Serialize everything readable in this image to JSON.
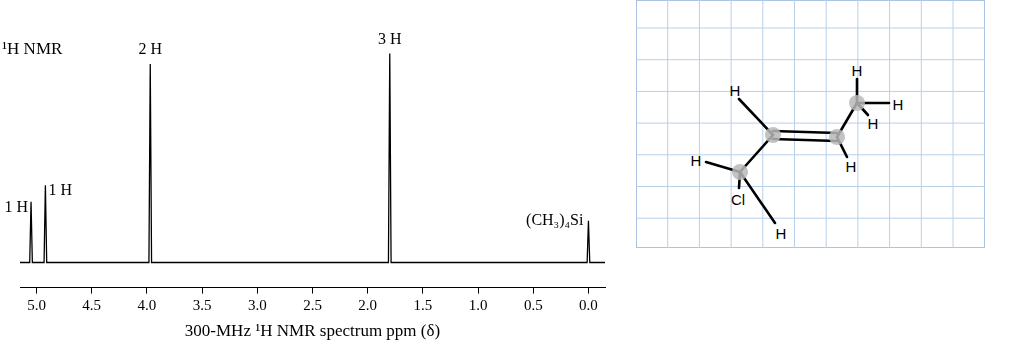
{
  "chart_data": {
    "type": "line",
    "title": "¹H NMR",
    "x_label": "300-MHz ¹H NMR spectrum ppm (δ)",
    "x": [
      5.05,
      4.92,
      3.97,
      1.8,
      0.0
    ],
    "values": [
      29,
      37,
      95,
      100,
      20
    ],
    "annotations": [
      "1 H",
      "1 H",
      "2 H",
      "3 H",
      "(CH₃)₄Si"
    ],
    "xlim": [
      5.15,
      -0.15
    ],
    "xticks": [
      {
        "value": 5,
        "label": "5.0"
      },
      {
        "value": 4.5,
        "label": "4.5"
      },
      {
        "value": 4,
        "label": "4.0"
      },
      {
        "value": 3.5,
        "label": "3.5"
      },
      {
        "value": 3,
        "label": "3.0"
      },
      {
        "value": 2.5,
        "label": "2.5"
      },
      {
        "value": 2,
        "label": "2.0"
      },
      {
        "value": 1.5,
        "label": "1.5"
      },
      {
        "value": 1,
        "label": "1.0"
      },
      {
        "value": 0.5,
        "label": "0.5"
      },
      {
        "value": 0,
        "label": "0.0"
      }
    ],
    "ylim": [
      -12,
      105
    ],
    "grid": false,
    "tick_labels": "x",
    "color": "#000000"
  },
  "diagram": {
    "atom_labels": [
      "H",
      "H",
      "H",
      "H",
      "H",
      "H",
      "Cl",
      "H"
    ]
  }
}
